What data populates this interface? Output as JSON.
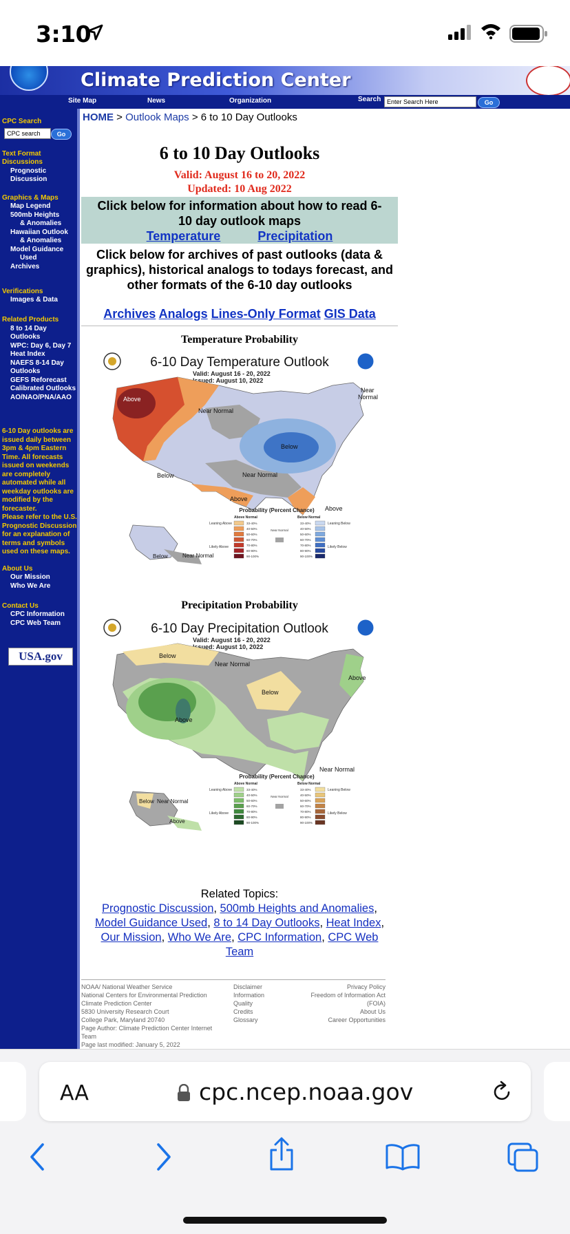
{
  "status": {
    "time": "3:10"
  },
  "header": {
    "title": "Climate Prediction Center",
    "nav": [
      "Site Map",
      "News",
      "Organization"
    ],
    "search_label": "Search",
    "search_value": "Enter Search Here",
    "go": "Go"
  },
  "sidebar": {
    "search_title": "CPC Search",
    "search_value": "CPC search",
    "go": "Go",
    "sections": [
      {
        "title": [
          "Text Format",
          "Discussions"
        ],
        "items": [
          "Prognostic",
          "  Discussion"
        ]
      },
      {
        "title": [
          "Graphics & Maps"
        ],
        "items": [
          "Map Legend",
          "500mb Heights",
          "    & Anomalies",
          "Hawaiian Outlook",
          "    & Anomalies",
          "Model Guidance",
          "    Used",
          "Archives"
        ]
      },
      {
        "title": [
          "Verifications"
        ],
        "items": [
          "Images & Data"
        ]
      },
      {
        "title": [
          "Related Products"
        ],
        "items": [
          "8 to 14 Day",
          "Outlooks",
          "WPC: Day 6, Day 7",
          "Heat Index",
          "NAEFS 8-14 Day",
          "Outlooks",
          "GEFS Reforecast",
          "Calibrated Outlooks",
          "AO/NAO/PNA/AAO"
        ]
      }
    ],
    "note1": [
      "6-10 Day outlooks are",
      "issued daily between",
      "3pm & 4pm Eastern",
      "Time. All forecasts",
      "issued on weekends",
      "are completely",
      "automated while all",
      "weekday outlooks are",
      "modified by the",
      "forecaster."
    ],
    "note2": [
      "Please refer to the U.S.",
      "Prognostic Discussion",
      "for an explanation of",
      "terms and symbols",
      "used on these maps."
    ],
    "about": {
      "title": "About Us",
      "items": [
        "Our Mission",
        "Who We Are"
      ]
    },
    "contact": {
      "title": "Contact Us",
      "items": [
        "CPC Information",
        "CPC Web Team"
      ]
    },
    "usagov": "USA.gov"
  },
  "breadcrumb": {
    "home": "HOME",
    "sep": ">",
    "outlook_maps": "Outlook Maps",
    "current": "6 to 10 Day Outlooks"
  },
  "page": {
    "title": "6 to 10 Day Outlooks",
    "valid": "Valid: August 16 to 20, 2022",
    "updated": "Updated: 10 Aug 2022",
    "info_text": "Click below for information about how to read 6-10 day outlook maps",
    "temp_link": "Temperature",
    "precip_link": "Precipitation",
    "archive_text": "Click below for archives of past outlooks (data & graphics), historical analogs to todays forecast, and other formats of the 6-10 day outlooks",
    "archive_links": [
      "Archives",
      "Analogs",
      "Lines-Only Format",
      "GIS Data"
    ]
  },
  "temp_map": {
    "section_title": "Temperature Probability",
    "map_title": "6-10 Day Temperature Outlook",
    "valid": "Valid:  August 16 - 20, 2022",
    "issued": "Issued:  August 10, 2022",
    "labels": [
      "Above",
      "Near Normal",
      "Below",
      "Near Normal",
      "Below",
      "Above",
      "Above",
      "Near",
      "Normal",
      "Below",
      "Near Normal"
    ],
    "legend_title": "Probability (Percent Chance)",
    "legend_above": "Above Normal",
    "legend_below": "Below Normal",
    "legend_near": "Near Normal",
    "leaning_above": "Leaning Above",
    "likely_above": "Likely Above",
    "leaning_below": "Leaning Below",
    "likely_below": "Likely Below",
    "bins": [
      "33-40%",
      "40-50%",
      "50-60%",
      "60-70%",
      "70-80%",
      "80-90%",
      "90-100%"
    ],
    "above_colors": [
      "#f2c98c",
      "#ee9e5a",
      "#e07a3e",
      "#cf5734",
      "#c23a2a",
      "#a42428",
      "#6e1420"
    ],
    "below_colors": [
      "#c9d8f0",
      "#a7c3e8",
      "#7fa9de",
      "#5f8fd4",
      "#3f6fc2",
      "#274aa0",
      "#1a2a6c"
    ]
  },
  "precip_map": {
    "section_title": "Precipitation Probability",
    "map_title": "6-10 Day Precipitation Outlook",
    "valid": "Valid:  August 16 - 20, 2022",
    "issued": "Issued:  August 10, 2022",
    "labels": [
      "Below",
      "Near Normal",
      "Below",
      "Above",
      "Above",
      "Near Normal",
      "Below",
      "Near Normal",
      "Above"
    ],
    "legend_title": "Probability (Percent Chance)",
    "legend_above": "Above Normal",
    "legend_below": "Below Normal",
    "legend_near": "Near Normal",
    "leaning_above": "Leaning Above",
    "likely_above": "Likely Above",
    "leaning_below": "Leaning Below",
    "likely_below": "Likely Below",
    "bins": [
      "33-40%",
      "40-50%",
      "50-60%",
      "60-70%",
      "70-80%",
      "80-90%",
      "90-100%"
    ],
    "above_colors": [
      "#bfe0a8",
      "#9fd08a",
      "#7dbd6a",
      "#5aa04e",
      "#3f8a3e",
      "#2d6a30",
      "#1c4a22"
    ],
    "below_colors": [
      "#f2dea0",
      "#e8c57a",
      "#d9a45a",
      "#c28446",
      "#a8673a",
      "#8a4c2e",
      "#6a3624"
    ]
  },
  "related": {
    "title": "Related Topics:",
    "links": [
      "Prognostic Discussion",
      "500mb Heights and Anomalies",
      "Model Guidance Used",
      "8 to 14 Day Outlooks",
      "Heat Index",
      "Our Mission",
      "Who We Are",
      "CPC Information",
      "CPC Web Team"
    ]
  },
  "footer": {
    "col1": [
      "NOAA/ National Weather Service",
      "National Centers for Environmental Prediction",
      "Climate Prediction Center",
      "5830 University Research Court",
      "College Park, Maryland 20740",
      "Page Author: Climate Prediction Center Internet",
      "Team",
      "Page last modified: January 5, 2022"
    ],
    "col2": [
      "Disclaimer",
      "Information",
      "Quality",
      "Credits",
      "Glossary"
    ],
    "col3": [
      "Privacy Policy",
      "Freedom of Information Act",
      "(FOIA)",
      "About Us",
      "Career Opportunities"
    ]
  },
  "browser": {
    "aa": "AA",
    "url": "cpc.ncep.noaa.gov"
  }
}
